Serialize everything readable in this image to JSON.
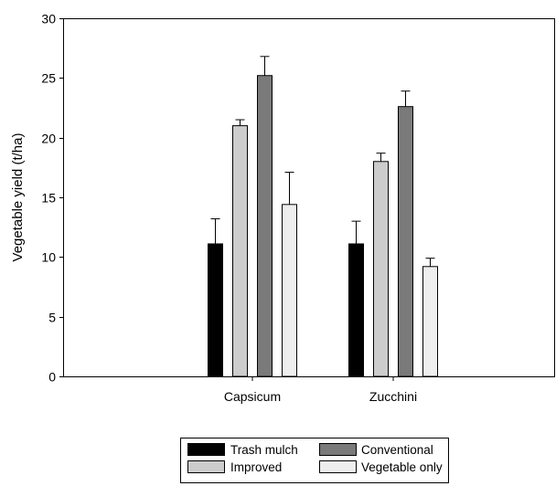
{
  "chart_data": {
    "type": "bar",
    "title": "",
    "xlabel": "",
    "ylabel": "Vegetable yield (t/ha)",
    "ylim": [
      0,
      30
    ],
    "yticks": [
      0,
      5,
      10,
      15,
      20,
      25,
      30
    ],
    "categories": [
      "Capsicum",
      "Zucchini"
    ],
    "series": [
      {
        "name": "Trash mulch",
        "color": "#000000",
        "values": [
          11.1,
          11.1
        ],
        "errors": [
          2.1,
          1.9
        ]
      },
      {
        "name": "Improved",
        "color": "#cccccc",
        "values": [
          21.0,
          18.0
        ],
        "errors": [
          0.5,
          0.7
        ]
      },
      {
        "name": "Conventional",
        "color": "#7a7a7a",
        "values": [
          25.2,
          22.6
        ],
        "errors": [
          1.6,
          1.3
        ]
      },
      {
        "name": "Vegetable only",
        "color": "#eeeeee",
        "values": [
          14.4,
          9.2
        ],
        "errors": [
          2.7,
          0.7
        ]
      }
    ],
    "error_bars": "upper",
    "grid": false,
    "legend": {
      "position": "bottom-center",
      "columns": 2
    }
  }
}
